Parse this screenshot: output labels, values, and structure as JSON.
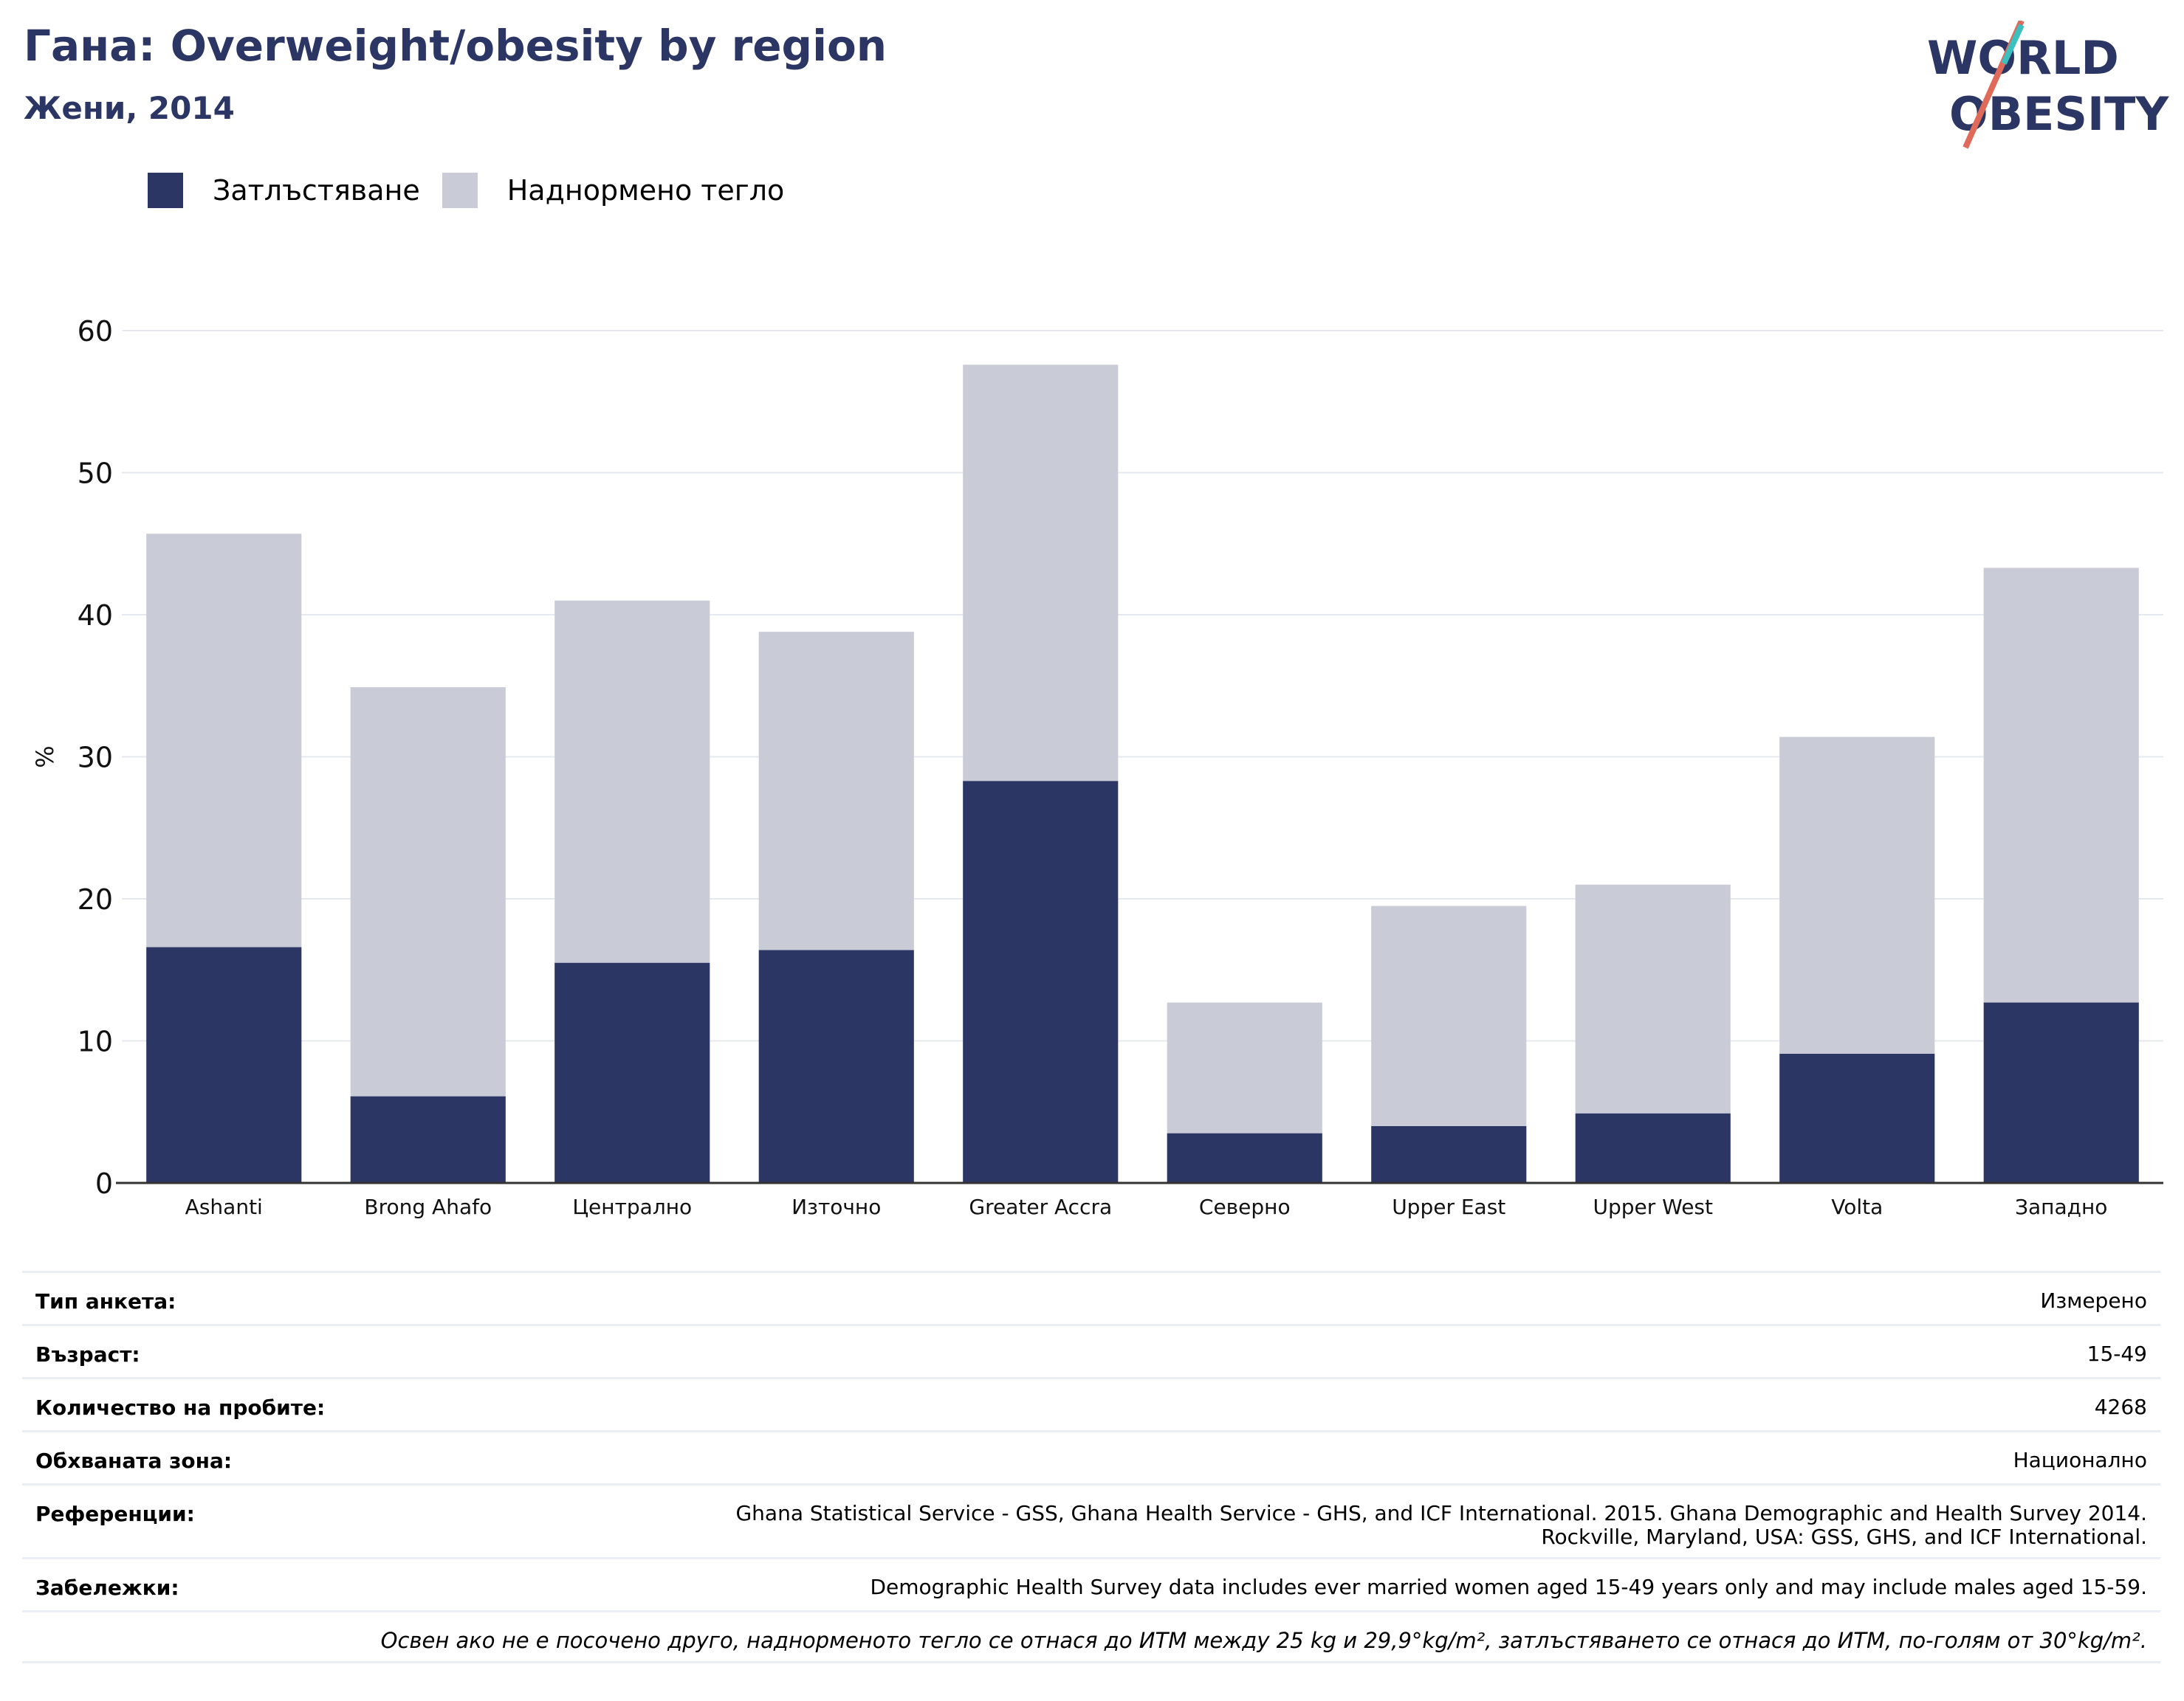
{
  "header": {
    "title": "Гана: Overweight/obesity by region",
    "subtitle": "Жени, 2014"
  },
  "logo": {
    "line1": "WORLD",
    "line2": "OBESITY"
  },
  "colors": {
    "obesity": "#2b3664",
    "overweight": "#c9cbd7",
    "accent_teal": "#3bbfbf",
    "accent_coral": "#e06a5a"
  },
  "chart_data": {
    "type": "bar",
    "stacked": true,
    "categories": [
      "Ashanti",
      "Brong Ahafo",
      "Централно",
      "Източно",
      "Greater Accra",
      "Северно",
      "Upper East",
      "Upper West",
      "Volta",
      "Западно"
    ],
    "series": [
      {
        "name": "Затлъстяване",
        "values": [
          16.6,
          6.1,
          15.5,
          16.4,
          28.3,
          3.5,
          4.0,
          4.9,
          9.1,
          12.7
        ]
      },
      {
        "name": "Наднормено тегло",
        "values": [
          29.1,
          28.8,
          25.5,
          22.4,
          29.3,
          9.2,
          15.5,
          16.1,
          22.3,
          30.6
        ]
      }
    ],
    "ylabel": "%",
    "xlabel": "",
    "ylim": [
      0,
      60
    ],
    "yticks": [
      0,
      10,
      20,
      30,
      40,
      50,
      60
    ],
    "grid": true,
    "legend_position": "top-left"
  },
  "info": {
    "rows": [
      {
        "key": "Тип анкета:",
        "value": "Измерено"
      },
      {
        "key": "Възраст:",
        "value": "15-49"
      },
      {
        "key": "Количество на пробите:",
        "value": "4268"
      },
      {
        "key": "Обхваната зона:",
        "value": "Национално"
      },
      {
        "key": "Референции:",
        "value": "Ghana Statistical Service - GSS, Ghana Health Service - GHS, and ICF International. 2015. Ghana Demographic and Health Survey 2014.\nRockville, Maryland, USA: GSS, GHS, and ICF International."
      },
      {
        "key": "Забележки:",
        "value": "Demographic Health Survey data includes ever married women aged 15-49 years only and may include males aged 15-59."
      }
    ],
    "footnote": "Освен ако не е посочено друго, наднорменото тегло се отнася до ИТМ между 25 kg и 29,9°kg/m², затлъстяването се отнася до ИТМ, по-голям от 30°kg/m²."
  }
}
